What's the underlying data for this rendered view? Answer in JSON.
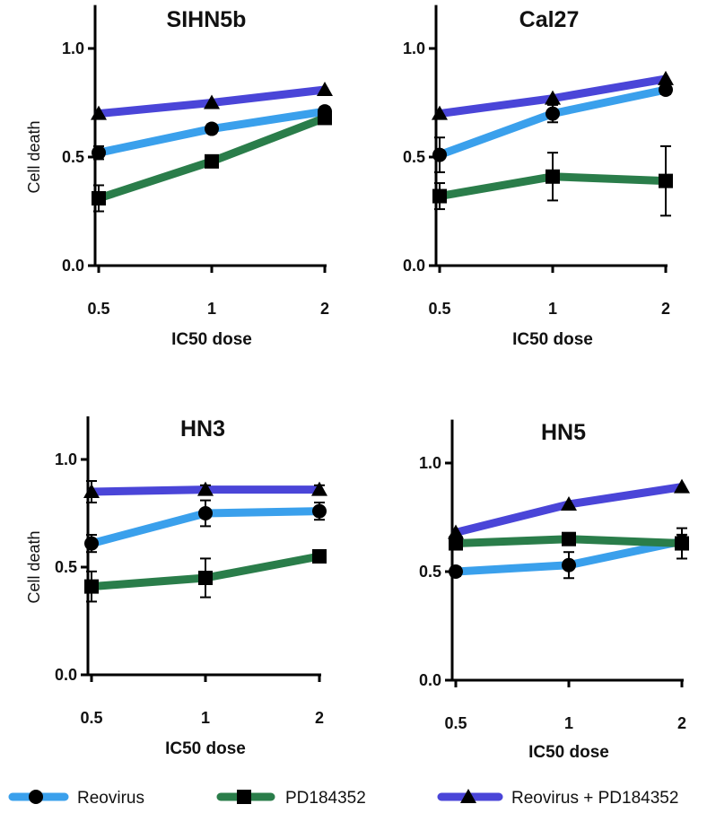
{
  "colors": {
    "reovirus": "#3aa0ec",
    "pd": "#2a7d4a",
    "combo": "#4a45d8",
    "marker": "#000000"
  },
  "legend": [
    {
      "name": "Reovirus",
      "color": "#3aa0ec",
      "marker": "circle"
    },
    {
      "name": "PD184352",
      "color": "#2a7d4a",
      "marker": "square"
    },
    {
      "name": "Reovirus + PD184352",
      "color": "#4a45d8",
      "marker": "triangle"
    }
  ],
  "chart_data": [
    {
      "type": "line",
      "title": "SIHN5b",
      "xlabel": "IC50 dose",
      "ylabel": "Cell death",
      "categories": [
        "0.5",
        "1",
        "2"
      ],
      "yticks": [
        "0.0",
        "0.5",
        "1.0"
      ],
      "ylim": [
        0,
        1.2
      ],
      "series": [
        {
          "name": "Reovirus",
          "marker": "circle",
          "values": [
            0.52,
            0.63,
            0.71
          ],
          "err": [
            0.03,
            0.02,
            0.02
          ]
        },
        {
          "name": "PD184352",
          "marker": "square",
          "values": [
            0.31,
            0.48,
            0.68
          ],
          "err": [
            0.06,
            0.02,
            0.02
          ]
        },
        {
          "name": "Reovirus + PD184352",
          "marker": "triangle",
          "values": [
            0.7,
            0.75,
            0.81
          ],
          "err": [
            0,
            0,
            0
          ]
        }
      ]
    },
    {
      "type": "line",
      "title": "Cal27",
      "xlabel": "IC50 dose",
      "ylabel": "",
      "categories": [
        "0.5",
        "1",
        "2"
      ],
      "yticks": [
        "0.0",
        "0.5",
        "1.0"
      ],
      "ylim": [
        0,
        1.2
      ],
      "series": [
        {
          "name": "Reovirus",
          "marker": "circle",
          "values": [
            0.51,
            0.7,
            0.81
          ],
          "err": [
            0.08,
            0.04,
            0.02
          ]
        },
        {
          "name": "PD184352",
          "marker": "square",
          "values": [
            0.32,
            0.41,
            0.39
          ],
          "err": [
            0.06,
            0.11,
            0.16
          ]
        },
        {
          "name": "Reovirus + PD184352",
          "marker": "triangle",
          "values": [
            0.7,
            0.77,
            0.86
          ],
          "err": [
            0,
            0,
            0
          ]
        }
      ]
    },
    {
      "type": "line",
      "title": "HN3",
      "xlabel": "IC50 dose",
      "ylabel": "Cell death",
      "categories": [
        "0.5",
        "1",
        "2"
      ],
      "yticks": [
        "0.0",
        "0.5",
        "1.0"
      ],
      "ylim": [
        0,
        1.2
      ],
      "series": [
        {
          "name": "Reovirus",
          "marker": "circle",
          "values": [
            0.61,
            0.75,
            0.76
          ],
          "err": [
            0.04,
            0.06,
            0.04
          ]
        },
        {
          "name": "PD184352",
          "marker": "square",
          "values": [
            0.41,
            0.45,
            0.55
          ],
          "err": [
            0.07,
            0.09,
            0.02
          ]
        },
        {
          "name": "Reovirus + PD184352",
          "marker": "triangle",
          "values": [
            0.85,
            0.86,
            0.86
          ],
          "err": [
            0.05,
            0.02,
            0.02
          ]
        }
      ]
    },
    {
      "type": "line",
      "title": "HN5",
      "xlabel": "IC50 dose",
      "ylabel": "",
      "categories": [
        "0.5",
        "1",
        "2"
      ],
      "yticks": [
        "0.0",
        "0.5",
        "1.0"
      ],
      "ylim": [
        0,
        1.2
      ],
      "series": [
        {
          "name": "Reovirus",
          "marker": "circle",
          "values": [
            0.5,
            0.53,
            0.64
          ],
          "err": [
            0.02,
            0.06,
            0.03
          ]
        },
        {
          "name": "PD184352",
          "marker": "square",
          "values": [
            0.63,
            0.65,
            0.63
          ],
          "err": [
            0.02,
            0.02,
            0.07
          ]
        },
        {
          "name": "Reovirus + PD184352",
          "marker": "triangle",
          "values": [
            0.68,
            0.81,
            0.89
          ],
          "err": [
            0,
            0,
            0
          ]
        }
      ]
    }
  ]
}
